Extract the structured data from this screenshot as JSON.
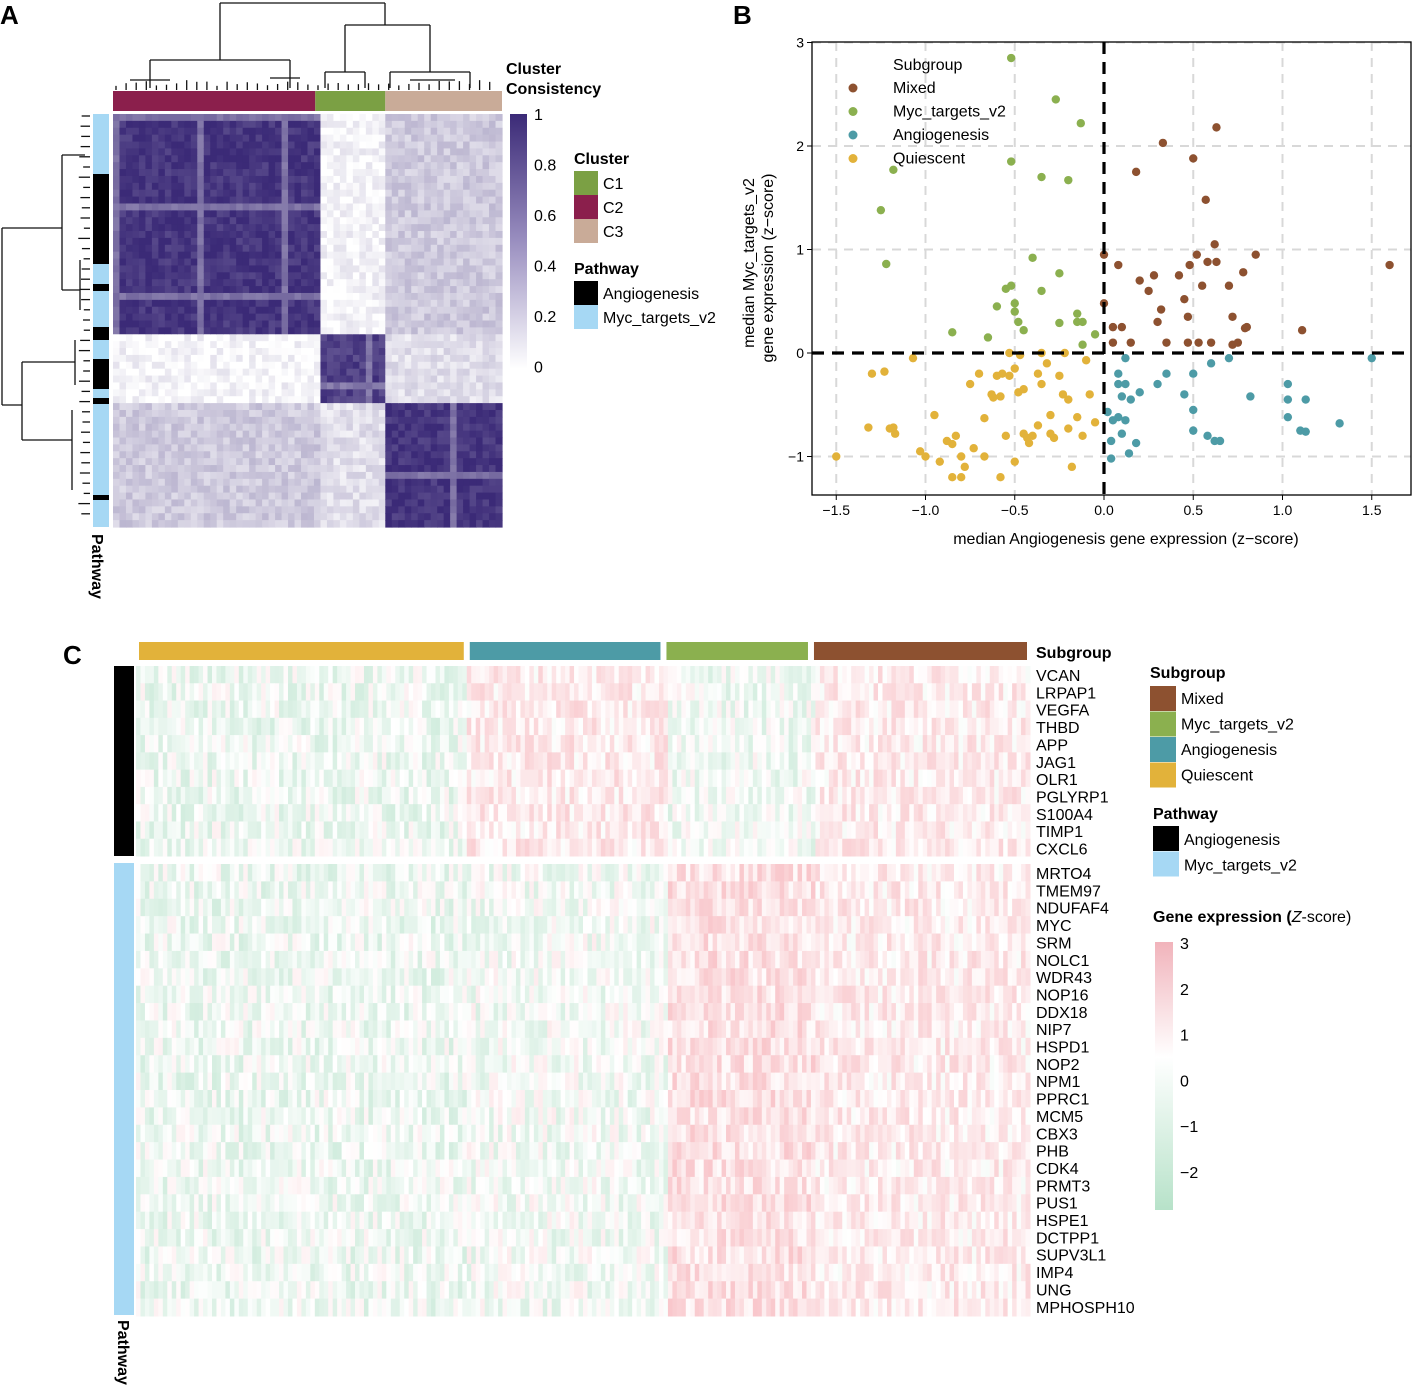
{
  "panels": {
    "a": "A",
    "b": "B",
    "c": "C"
  },
  "panel_a": {
    "consistency_title_1": "Cluster",
    "consistency_title_2": "Consistency",
    "colorbar_ticks": [
      "1",
      "0.8",
      "0.6",
      "0.4",
      "0.2",
      "0"
    ],
    "colorbar_range": [
      0,
      1
    ],
    "cluster_legend": {
      "title": "Cluster",
      "items": [
        {
          "label": "C1",
          "color": "#7ba044"
        },
        {
          "label": "C2",
          "color": "#8b1f4c"
        },
        {
          "label": "C3",
          "color": "#c9ab98"
        }
      ]
    },
    "pathway_legend": {
      "title": "Pathway",
      "items": [
        {
          "label": "Angiogenesis",
          "color": "#000000"
        },
        {
          "label": "Myc_targets_v2",
          "color": "#a6d8f4"
        }
      ]
    },
    "side_label": "Pathway",
    "colors": {
      "high": "#3b2a77",
      "low": "#ffffff"
    }
  },
  "chart_data": [
    {
      "type": "heatmap",
      "title": "",
      "description_ref": "consensus matrix",
      "cluster_order": [
        "C2",
        "C1",
        "C3"
      ],
      "cluster_fraction": [
        0.52,
        0.18,
        0.3
      ],
      "block_consistency": {
        "C2": 0.95,
        "C1": 0.9,
        "C3": 0.95,
        "C2_C3_off": 0.25,
        "C1_C3_off": 0.15,
        "C2_C1_off": 0.05
      }
    },
    {
      "type": "scatter",
      "xlabel": "median Angiogenesis gene expression (z−score)",
      "ylabel_1": "median Myc_targets_v2",
      "ylabel_2": "gene expression (z−score)",
      "xlim": [
        -1.7,
        1.7
      ],
      "ylim": [
        -1.35,
        3.0
      ],
      "xticks": [
        "−1.5",
        "−1.0",
        "−0.5",
        "0.0",
        "0.5",
        "1.0",
        "1.5"
      ],
      "yticks": [
        "3",
        "2",
        "1",
        "0",
        "−1"
      ],
      "legend": {
        "title": "Subgroup",
        "position": "top-left"
      },
      "grid": true,
      "series": [
        {
          "name": "Mixed",
          "color": "#8d5130",
          "points": [
            [
              0.0,
              0.95
            ],
            [
              0.08,
              0.85
            ],
            [
              0.0,
              0.48
            ],
            [
              0.05,
              0.25
            ],
            [
              0.1,
              0.25
            ],
            [
              0.05,
              0.1
            ],
            [
              0.15,
              0.1
            ],
            [
              0.18,
              1.75
            ],
            [
              0.2,
              0.7
            ],
            [
              0.25,
              0.6
            ],
            [
              0.28,
              0.75
            ],
            [
              0.3,
              0.3
            ],
            [
              0.32,
              0.42
            ],
            [
              0.33,
              2.03
            ],
            [
              0.45,
              0.52
            ],
            [
              0.47,
              0.35
            ],
            [
              0.48,
              0.85
            ],
            [
              0.5,
              1.88
            ],
            [
              0.52,
              0.95
            ],
            [
              0.55,
              0.65
            ],
            [
              0.53,
              0.1
            ],
            [
              0.57,
              1.48
            ],
            [
              0.58,
              0.88
            ],
            [
              0.6,
              0.1
            ],
            [
              0.62,
              1.05
            ],
            [
              0.63,
              0.88
            ],
            [
              0.63,
              2.18
            ],
            [
              0.7,
              0.65
            ],
            [
              0.72,
              0.35
            ],
            [
              0.72,
              0.08
            ],
            [
              0.75,
              0.1
            ],
            [
              0.78,
              0.78
            ],
            [
              0.79,
              0.24
            ],
            [
              0.8,
              0.25
            ],
            [
              0.85,
              0.95
            ],
            [
              0.47,
              0.1
            ],
            [
              0.35,
              0.1
            ],
            [
              0.42,
              0.75
            ],
            [
              1.11,
              0.22
            ],
            [
              1.6,
              0.85
            ]
          ]
        },
        {
          "name": "Myc_targets_v2",
          "color": "#8bb04f",
          "points": [
            [
              -1.18,
              1.77
            ],
            [
              -1.25,
              1.38
            ],
            [
              -1.22,
              0.86
            ],
            [
              -0.85,
              0.2
            ],
            [
              -0.65,
              0.15
            ],
            [
              -0.6,
              0.45
            ],
            [
              -0.55,
              0.62
            ],
            [
              -0.52,
              0.65
            ],
            [
              -0.5,
              0.48
            ],
            [
              -0.5,
              0.4
            ],
            [
              -0.48,
              0.3
            ],
            [
              -0.45,
              0.22
            ],
            [
              -0.4,
              0.92
            ],
            [
              -0.35,
              0.6
            ],
            [
              -0.52,
              1.85
            ],
            [
              -0.52,
              2.85
            ],
            [
              -0.35,
              1.7
            ],
            [
              -0.27,
              2.45
            ],
            [
              -0.2,
              1.67
            ],
            [
              -0.13,
              2.22
            ],
            [
              -0.25,
              0.77
            ],
            [
              -0.25,
              0.29
            ],
            [
              -0.15,
              0.3
            ],
            [
              -0.15,
              0.38
            ],
            [
              -0.12,
              0.3
            ],
            [
              -0.05,
              0.18
            ],
            [
              -0.12,
              0.08
            ]
          ]
        },
        {
          "name": "Angiogenesis",
          "color": "#4d9ba6",
          "points": [
            [
              0.12,
              -0.05
            ],
            [
              0.08,
              -0.2
            ],
            [
              0.08,
              -0.3
            ],
            [
              0.12,
              -0.3
            ],
            [
              0.2,
              -0.38
            ],
            [
              0.15,
              -0.45
            ],
            [
              0.1,
              -0.42
            ],
            [
              0.02,
              -0.57
            ],
            [
              0.05,
              -0.65
            ],
            [
              0.08,
              -0.62
            ],
            [
              0.12,
              -0.65
            ],
            [
              0.1,
              -0.78
            ],
            [
              0.04,
              -0.85
            ],
            [
              0.04,
              -1.02
            ],
            [
              0.14,
              -0.97
            ],
            [
              0.18,
              -0.87
            ],
            [
              0.3,
              -0.3
            ],
            [
              0.35,
              -0.2
            ],
            [
              0.45,
              -0.4
            ],
            [
              0.5,
              -0.2
            ],
            [
              0.5,
              -0.55
            ],
            [
              0.5,
              -0.75
            ],
            [
              0.58,
              -0.8
            ],
            [
              0.6,
              -0.1
            ],
            [
              0.62,
              -0.85
            ],
            [
              0.65,
              -0.85
            ],
            [
              0.7,
              -0.05
            ],
            [
              0.82,
              -0.42
            ],
            [
              1.03,
              -0.3
            ],
            [
              1.03,
              -0.45
            ],
            [
              1.03,
              -0.62
            ],
            [
              1.1,
              -0.75
            ],
            [
              1.13,
              -0.76
            ],
            [
              1.13,
              -0.45
            ],
            [
              1.32,
              -0.68
            ],
            [
              1.5,
              -0.05
            ]
          ]
        },
        {
          "name": "Quiescent",
          "color": "#e2b23a",
          "points": [
            [
              -1.5,
              -1.0
            ],
            [
              -1.32,
              -0.72
            ],
            [
              -1.3,
              -0.2
            ],
            [
              -1.23,
              -0.18
            ],
            [
              -1.18,
              -0.72
            ],
            [
              -1.17,
              -0.78
            ],
            [
              -1.2,
              -0.73
            ],
            [
              -1.07,
              -0.05
            ],
            [
              -1.03,
              -0.95
            ],
            [
              -1.0,
              -1.0
            ],
            [
              -0.95,
              -0.6
            ],
            [
              -0.88,
              -0.85
            ],
            [
              -0.85,
              -0.88
            ],
            [
              -0.83,
              -0.8
            ],
            [
              -0.8,
              -1.0
            ],
            [
              -0.78,
              -1.1
            ],
            [
              -0.75,
              -0.3
            ],
            [
              -0.73,
              -0.92
            ],
            [
              -0.7,
              -0.2
            ],
            [
              -0.67,
              -1.0
            ],
            [
              -0.67,
              -0.63
            ],
            [
              -0.63,
              -0.4
            ],
            [
              -0.62,
              -0.43
            ],
            [
              -0.6,
              -0.22
            ],
            [
              -0.58,
              -0.42
            ],
            [
              -0.57,
              -0.2
            ],
            [
              -0.53,
              0.0
            ],
            [
              -0.53,
              -0.22
            ],
            [
              -0.5,
              -0.15
            ],
            [
              -0.47,
              -0.02
            ],
            [
              -0.48,
              -0.38
            ],
            [
              -0.5,
              -1.05
            ],
            [
              -0.45,
              -0.35
            ],
            [
              -0.45,
              -0.78
            ],
            [
              -0.43,
              -0.82
            ],
            [
              -0.42,
              -0.87
            ],
            [
              -0.4,
              -0.8
            ],
            [
              -0.37,
              -0.2
            ],
            [
              -0.37,
              -0.7
            ],
            [
              -0.35,
              -0.3
            ],
            [
              -0.35,
              0.0
            ],
            [
              -0.32,
              -0.1
            ],
            [
              -0.3,
              -0.6
            ],
            [
              -0.3,
              -0.78
            ],
            [
              -0.28,
              -0.82
            ],
            [
              -0.25,
              -0.22
            ],
            [
              -0.23,
              -0.4
            ],
            [
              -0.22,
              0.0
            ],
            [
              -0.2,
              -0.45
            ],
            [
              -0.2,
              -0.73
            ],
            [
              -0.18,
              -1.1
            ],
            [
              -0.15,
              -0.62
            ],
            [
              -0.12,
              -0.8
            ],
            [
              -0.05,
              -0.67
            ],
            [
              -0.08,
              -0.4
            ],
            [
              -0.1,
              -0.07
            ],
            [
              -0.55,
              -0.8
            ],
            [
              -0.58,
              -1.2
            ],
            [
              -0.8,
              -1.2
            ],
            [
              -0.85,
              -1.2
            ],
            [
              -0.92,
              -1.05
            ]
          ]
        }
      ]
    },
    {
      "type": "heatmap",
      "title": "",
      "subgroup_label": "Subgroup",
      "subgroup_order": [
        "Quiescent",
        "Angiogenesis",
        "Myc_targets_v2",
        "Mixed"
      ],
      "subgroup_fraction": [
        0.37,
        0.22,
        0.165,
        0.245
      ],
      "angiogenesis_genes": [
        "VCAN",
        "LRPAP1",
        "VEGFA",
        "THBD",
        "APP",
        "JAG1",
        "OLR1",
        "PGLYRP1",
        "S100A4",
        "TIMP1",
        "CXCL6"
      ],
      "myc_genes": [
        "MRTO4",
        "TMEM97",
        "NDUFAF4",
        "MYC",
        "SRM",
        "NOLC1",
        "WDR43",
        "NOP16",
        "DDX18",
        "NIP7",
        "HSPD1",
        "NOP2",
        "NPM1",
        "PPRC1",
        "MCM5",
        "CBX3",
        "PHB",
        "CDK4",
        "PRMT3",
        "PUS1",
        "HSPE1",
        "DCTPP1",
        "SUPV3L1",
        "IMP4",
        "UNG",
        "MPHOSPH10"
      ],
      "mean_zscore": {
        "angiogenesis": {
          "Quiescent": -0.35,
          "Angiogenesis": 0.6,
          "Myc_targets_v2": -0.25,
          "Mixed": 0.55
        },
        "myc": {
          "Quiescent": -0.35,
          "Angiogenesis": -0.2,
          "Myc_targets_v2": 0.9,
          "Mixed": 0.55
        }
      },
      "colorbar_range": [
        -2.3,
        3
      ],
      "colorbar_ticks": [
        "3",
        "2",
        "1",
        "0",
        "−1",
        "−2"
      ]
    }
  ],
  "panel_c": {
    "subgroup_legend": {
      "title": "Subgroup",
      "items": [
        {
          "label": "Mixed",
          "color": "#8d5130"
        },
        {
          "label": "Myc_targets_v2",
          "color": "#8bb04f"
        },
        {
          "label": "Angiogenesis",
          "color": "#4d9ba6"
        },
        {
          "label": "Quiescent",
          "color": "#e2b23a"
        }
      ]
    },
    "pathway_legend": {
      "title": "Pathway",
      "items": [
        {
          "label": "Angiogenesis",
          "color": "#000000"
        },
        {
          "label": "Myc_targets_v2",
          "color": "#a6d8f4"
        }
      ]
    },
    "expr_title_a": "Gene expression (",
    "expr_title_z": "Z",
    "expr_title_b": "-score)",
    "side_label": "Pathway",
    "colors": {
      "high": "#ef6f7b",
      "mid": "#ffffff",
      "low": "#6fc496"
    }
  }
}
